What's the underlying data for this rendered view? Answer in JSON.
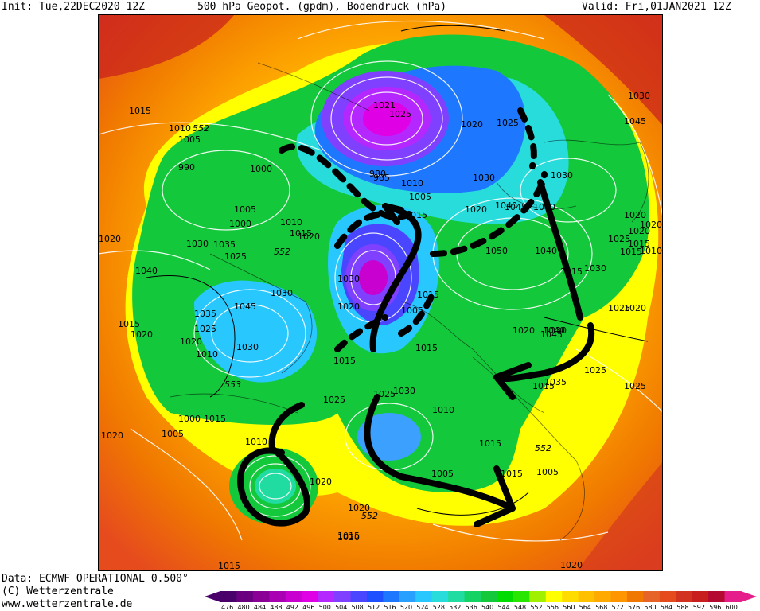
{
  "header": {
    "init": "Init: Tue,22DEC2020 12Z",
    "title": "500 hPa Geopot. (gpdm), Bodendruck (hPa)",
    "valid": "Valid: Fri,01JAN2021 12Z"
  },
  "footer": {
    "data": "Data: ECMWF OPERATIONAL 0.500°",
    "copyright": "(C) Wetterzentrale",
    "url": "www.wetterzentrale.de"
  },
  "colors": {
    "deep_purple": "#5a006e",
    "purple": "#a000c8",
    "magenta": "#e600e6",
    "violet": "#7a3cff",
    "blue": "#1e50ff",
    "light_blue": "#3ca0ff",
    "cyan": "#28dcdc",
    "green": "#14c83c",
    "bright_green": "#00dc00",
    "yellow": "#ffff00",
    "orange": "#ffaa00",
    "dark_orange": "#f07800",
    "red_orange": "#e64b1e",
    "red": "#c81e1e",
    "dark_red": "#b4003c",
    "arrow_color": "#000000",
    "isobar_color": "#ffffff"
  },
  "map_labels": {
    "pressure": [
      "1015",
      "1010",
      "552",
      "1005",
      "990",
      "1000",
      "1005",
      "1000",
      "1010",
      "1015",
      "1020",
      "1020",
      "1030",
      "1035",
      "1025",
      "552",
      "1040",
      "1030",
      "1045",
      "1035",
      "1025",
      "1020",
      "1030",
      "1010",
      "1015",
      "1020",
      "553",
      "1000",
      "1015",
      "1005",
      "1010",
      "1020",
      "1020",
      "1020",
      "552",
      "1025",
      "1015",
      "1015",
      "1010",
      "1005",
      "1030",
      "1020",
      "1005",
      "1015",
      "1015",
      "1025",
      "1030",
      "1015",
      "1020",
      "1040",
      "1045",
      "1030",
      "1025",
      "1020",
      "1020",
      "1015",
      "1020",
      "1010",
      "1025",
      "1015",
      "1030",
      "1025",
      "1020",
      "1025",
      "1035",
      "1030",
      "1050",
      "1040",
      "1045",
      "1040",
      "1030",
      "1025",
      "1020",
      "1021",
      "1025",
      "980",
      "985",
      "1010",
      "1005",
      "1015",
      "1030",
      "1020",
      "1040",
      "1045",
      "552",
      "1015",
      "1005",
      "1015",
      "1020",
      "1020",
      "1015",
      "1015"
    ]
  },
  "scale": {
    "ticks": [
      "476",
      "480",
      "484",
      "488",
      "492",
      "496",
      "500",
      "504",
      "508",
      "512",
      "516",
      "520",
      "524",
      "528",
      "532",
      "536",
      "540",
      "544",
      "548",
      "552",
      "556",
      "560",
      "564",
      "568",
      "572",
      "576",
      "580",
      "584",
      "588",
      "592",
      "596",
      "600"
    ],
    "colors": [
      "#4a006a",
      "#6a0080",
      "#8a0096",
      "#aa00b4",
      "#c800d0",
      "#e000e6",
      "#b428ff",
      "#8040ff",
      "#4a46ff",
      "#1e50ff",
      "#1e78ff",
      "#28a0ff",
      "#28c8ff",
      "#28dcdc",
      "#20dca0",
      "#14d264",
      "#14c83c",
      "#00dc00",
      "#28e600",
      "#a0f000",
      "#ffff00",
      "#ffdc00",
      "#ffc000",
      "#ffaa00",
      "#ff9600",
      "#f07800",
      "#e66428",
      "#e64b1e",
      "#d23220",
      "#c81e1e",
      "#b40a32",
      "#e61e8c"
    ]
  }
}
